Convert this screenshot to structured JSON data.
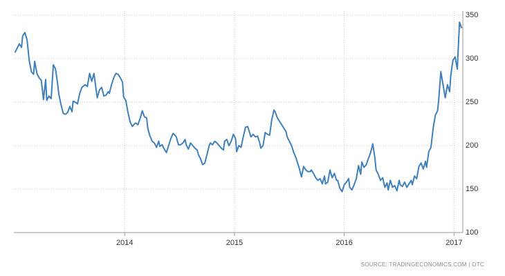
{
  "chart_data": {
    "type": "line",
    "source": "SOURCE: TRADINGECONOMICS.COM | OTC",
    "xlim": [
      2012.99,
      2017.08
    ],
    "xticks": [
      2014,
      2015,
      2016,
      2017
    ],
    "ylim": [
      100,
      350
    ],
    "yticks": [
      100,
      150,
      200,
      250,
      300,
      350
    ],
    "grid": true,
    "series": [
      {
        "color": "#3f7fba",
        "x": [
          2013.0,
          2013.02,
          2013.04,
          2013.06,
          2013.07,
          2013.09,
          2013.11,
          2013.13,
          2013.15,
          2013.17,
          2013.18,
          2013.2,
          2013.22,
          2013.24,
          2013.26,
          2013.28,
          2013.29,
          2013.31,
          2013.33,
          2013.35,
          2013.37,
          2013.39,
          2013.4,
          2013.42,
          2013.44,
          2013.46,
          2013.48,
          2013.5,
          2013.52,
          2013.53,
          2013.55,
          2013.57,
          2013.59,
          2013.61,
          2013.63,
          2013.64,
          2013.66,
          2013.68,
          2013.7,
          2013.72,
          2013.74,
          2013.75,
          2013.77,
          2013.79,
          2013.81,
          2013.83,
          2013.85,
          2013.86,
          2013.88,
          2013.9,
          2013.92,
          2013.94,
          2013.96,
          2013.98,
          2013.99,
          2014.01,
          2014.03,
          2014.05,
          2014.07,
          2014.09,
          2014.1,
          2014.12,
          2014.14,
          2014.16,
          2014.18,
          2014.2,
          2014.21,
          2014.23,
          2014.25,
          2014.27,
          2014.29,
          2014.31,
          2014.32,
          2014.34,
          2014.36,
          2014.38,
          2014.4,
          2014.42,
          2014.44,
          2014.45,
          2014.47,
          2014.49,
          2014.51,
          2014.53,
          2014.55,
          2014.56,
          2014.58,
          2014.6,
          2014.62,
          2014.64,
          2014.66,
          2014.67,
          2014.69,
          2014.71,
          2014.73,
          2014.75,
          2014.77,
          2014.78,
          2014.8,
          2014.82,
          2014.84,
          2014.86,
          2014.88,
          2014.9,
          2014.91,
          2014.93,
          2014.95,
          2014.97,
          2014.99,
          2015.01,
          2015.02,
          2015.04,
          2015.06,
          2015.08,
          2015.1,
          2015.12,
          2015.13,
          2015.15,
          2015.17,
          2015.19,
          2015.21,
          2015.23,
          2015.24,
          2015.26,
          2015.28,
          2015.3,
          2015.32,
          2015.34,
          2015.36,
          2015.37,
          2015.39,
          2015.41,
          2015.43,
          2015.45,
          2015.47,
          2015.48,
          2015.5,
          2015.52,
          2015.54,
          2015.56,
          2015.58,
          2015.59,
          2015.61,
          2015.63,
          2015.65,
          2015.67,
          2015.69,
          2015.7,
          2015.72,
          2015.74,
          2015.76,
          2015.78,
          2015.8,
          2015.82,
          2015.83,
          2015.85,
          2015.87,
          2015.89,
          2015.91,
          2015.93,
          2015.94,
          2015.96,
          2015.98,
          2016.0,
          2016.02,
          2016.04,
          2016.05,
          2016.07,
          2016.09,
          2016.11,
          2016.13,
          2016.15,
          2016.16,
          2016.18,
          2016.2,
          2016.22,
          2016.24,
          2016.26,
          2016.28,
          2016.29,
          2016.31,
          2016.33,
          2016.35,
          2016.37,
          2016.39,
          2016.4,
          2016.42,
          2016.44,
          2016.46,
          2016.48,
          2016.5,
          2016.51,
          2016.53,
          2016.55,
          2016.57,
          2016.59,
          2016.61,
          2016.62,
          2016.64,
          2016.66,
          2016.68,
          2016.7,
          2016.72,
          2016.74,
          2016.75,
          2016.77,
          2016.79,
          2016.81,
          2016.83,
          2016.85,
          2016.86,
          2016.88,
          2016.9,
          2016.92,
          2016.94,
          2016.96,
          2016.97,
          2016.99,
          2017.01,
          2017.03,
          2017.05,
          2017.07
        ],
        "values": [
          307,
          312,
          317,
          313,
          326,
          330,
          322,
          298,
          285,
          282,
          297,
          283,
          278,
          275,
          253,
          276,
          252,
          257,
          254,
          293,
          288,
          270,
          259,
          247,
          237,
          236,
          238,
          245,
          239,
          251,
          250,
          248,
          260,
          267,
          269,
          270,
          268,
          283,
          274,
          283,
          264,
          255,
          264,
          267,
          257,
          258,
          262,
          260,
          270,
          278,
          283,
          282,
          278,
          273,
          256,
          252,
          238,
          227,
          222,
          225,
          226,
          224,
          231,
          240,
          233,
          232,
          220,
          211,
          205,
          203,
          198,
          205,
          199,
          201,
          196,
          192,
          200,
          208,
          214,
          213,
          210,
          201,
          201,
          203,
          207,
          201,
          196,
          203,
          200,
          197,
          195,
          190,
          185,
          178,
          180,
          190,
          200,
          203,
          201,
          205,
          203,
          200,
          197,
          195,
          205,
          207,
          200,
          205,
          213,
          208,
          193,
          200,
          198,
          210,
          221,
          222,
          218,
          210,
          213,
          210,
          211,
          203,
          197,
          200,
          215,
          213,
          212,
          230,
          241,
          239,
          232,
          228,
          224,
          220,
          216,
          210,
          205,
          200,
          192,
          186,
          178,
          174,
          164,
          176,
          172,
          170,
          170,
          172,
          168,
          163,
          160,
          162,
          156,
          165,
          156,
          158,
          172,
          163,
          168,
          160,
          160,
          151,
          147,
          155,
          158,
          162,
          152,
          149,
          155,
          162,
          177,
          167,
          181,
          175,
          178,
          185,
          192,
          202,
          185,
          172,
          167,
          160,
          163,
          152,
          157,
          149,
          160,
          152,
          154,
          148,
          160,
          155,
          153,
          158,
          152,
          156,
          160,
          155,
          165,
          162,
          176,
          180,
          173,
          182,
          175,
          193,
          198,
          220,
          235,
          240,
          252,
          285,
          270,
          255,
          270,
          262,
          280,
          298,
          302,
          288,
          342,
          335
        ]
      }
    ]
  }
}
